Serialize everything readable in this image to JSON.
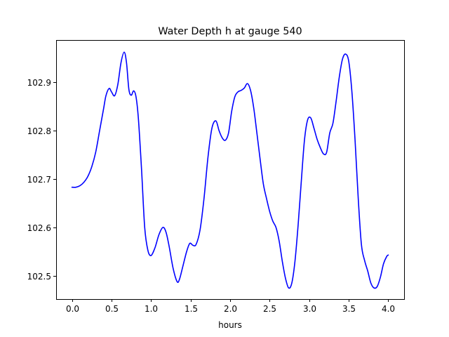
{
  "chart_data": {
    "type": "line",
    "title": "Water Depth h at gauge 540",
    "xlabel": "hours",
    "ylabel": "",
    "xlim": [
      -0.2,
      4.2
    ],
    "ylim": [
      102.452,
      102.987
    ],
    "xticks": [
      0.0,
      0.5,
      1.0,
      1.5,
      2.0,
      2.5,
      3.0,
      3.5,
      4.0
    ],
    "xtick_labels": [
      "0.0",
      "0.5",
      "1.0",
      "1.5",
      "2.0",
      "2.5",
      "3.0",
      "3.5",
      "4.0"
    ],
    "yticks": [
      102.5,
      102.6,
      102.7,
      102.8,
      102.9
    ],
    "ytick_labels": [
      "102.5",
      "102.6",
      "102.7",
      "102.8",
      "102.9"
    ],
    "grid": false,
    "series": [
      {
        "color": "#0000ff",
        "x": [
          0.0,
          0.05,
          0.1,
          0.15,
          0.2,
          0.25,
          0.3,
          0.35,
          0.4,
          0.43,
          0.47,
          0.5,
          0.54,
          0.58,
          0.62,
          0.66,
          0.69,
          0.72,
          0.75,
          0.78,
          0.81,
          0.84,
          0.88,
          0.92,
          0.96,
          1.0,
          1.05,
          1.1,
          1.15,
          1.19,
          1.23,
          1.28,
          1.33,
          1.36,
          1.4,
          1.45,
          1.49,
          1.53,
          1.57,
          1.62,
          1.67,
          1.72,
          1.77,
          1.82,
          1.86,
          1.9,
          1.94,
          1.98,
          2.02,
          2.06,
          2.1,
          2.14,
          2.18,
          2.22,
          2.26,
          2.3,
          2.34,
          2.38,
          2.42,
          2.46,
          2.5,
          2.54,
          2.58,
          2.62,
          2.66,
          2.7,
          2.74,
          2.78,
          2.82,
          2.86,
          2.9,
          2.94,
          2.98,
          3.02,
          3.06,
          3.1,
          3.14,
          3.18,
          3.22,
          3.26,
          3.3,
          3.34,
          3.38,
          3.42,
          3.46,
          3.5,
          3.54,
          3.58,
          3.62,
          3.66,
          3.7,
          3.74,
          3.78,
          3.82,
          3.86,
          3.9,
          3.94,
          3.98,
          4.0
        ],
        "y": [
          102.683,
          102.683,
          102.686,
          102.693,
          102.705,
          102.725,
          102.755,
          102.8,
          102.845,
          102.872,
          102.887,
          102.88,
          102.872,
          102.895,
          102.94,
          102.962,
          102.94,
          102.885,
          102.873,
          102.882,
          102.87,
          102.825,
          102.72,
          102.6,
          102.553,
          102.542,
          102.558,
          102.585,
          102.6,
          102.59,
          102.56,
          102.515,
          102.488,
          102.493,
          102.518,
          102.55,
          102.567,
          102.563,
          102.565,
          102.595,
          102.66,
          102.745,
          102.805,
          102.82,
          102.8,
          102.785,
          102.78,
          102.795,
          102.84,
          102.87,
          102.88,
          102.883,
          102.888,
          102.897,
          102.882,
          102.845,
          102.793,
          102.74,
          102.69,
          102.66,
          102.633,
          102.613,
          102.6,
          102.572,
          102.53,
          102.495,
          102.475,
          102.485,
          102.53,
          102.605,
          102.695,
          102.78,
          102.822,
          102.826,
          102.805,
          102.782,
          102.765,
          102.752,
          102.755,
          102.795,
          102.815,
          102.86,
          102.91,
          102.947,
          102.958,
          102.943,
          102.88,
          102.78,
          102.66,
          102.565,
          102.532,
          102.51,
          102.485,
          102.475,
          102.478,
          102.497,
          102.525,
          102.54,
          102.543
        ]
      }
    ]
  }
}
